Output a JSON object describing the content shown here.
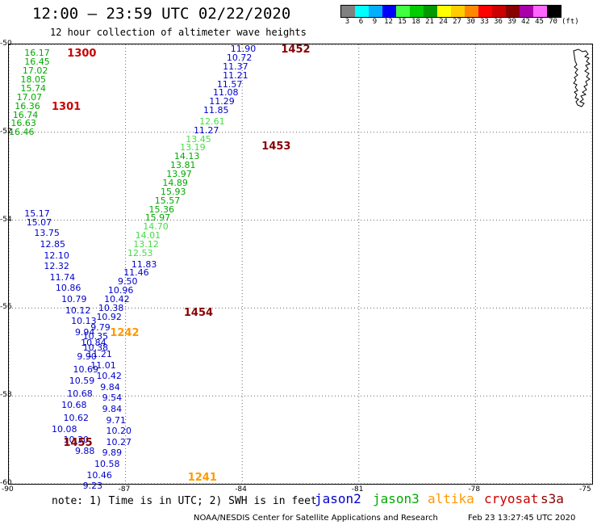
{
  "header": {
    "title": "12:00 – 23:59 UTC 02/22/2020",
    "subtitle": "12 hour collection of altimeter wave heights"
  },
  "colorbar": {
    "unit_label": "(ft)",
    "bins": [
      {
        "label": "3",
        "color": "#808080"
      },
      {
        "label": "6",
        "color": "#00ffff"
      },
      {
        "label": "9",
        "color": "#00b0ff"
      },
      {
        "label": "12",
        "color": "#0000ff"
      },
      {
        "label": "15",
        "color": "#40ff40"
      },
      {
        "label": "18",
        "color": "#00cc00"
      },
      {
        "label": "21",
        "color": "#009900"
      },
      {
        "label": "24",
        "color": "#ffff00"
      },
      {
        "label": "27",
        "color": "#ffcc00"
      },
      {
        "label": "30",
        "color": "#ff8800"
      },
      {
        "label": "33",
        "color": "#ff0000"
      },
      {
        "label": "36",
        "color": "#cc0000"
      },
      {
        "label": "39",
        "color": "#880000"
      },
      {
        "label": "42",
        "color": "#aa00aa"
      },
      {
        "label": "45",
        "color": "#ff66ff"
      },
      {
        "label": "70",
        "color": "#000000"
      }
    ]
  },
  "axes": {
    "lat_labels": [
      "-50",
      "-52",
      "-54",
      "-56",
      "-58",
      "-60"
    ],
    "lon_labels": [
      "-90",
      "-87",
      "-84",
      "-81",
      "-78",
      "-75"
    ]
  },
  "colors": {
    "jason2": "#0000cc",
    "jason3": "#00aa00",
    "jason3_light": "#44dd44",
    "altika": "#ff9900",
    "cryosat": "#cc0000",
    "s3a": "#880000"
  },
  "chart_data": {
    "type": "map",
    "xlim": [
      -90,
      -75
    ],
    "ylim": [
      -60,
      -50
    ],
    "tracks": [
      {
        "color_key": "jason3",
        "points": [
          {
            "lon": -89.6,
            "lat": -50.1,
            "v": "16.17"
          },
          {
            "lon": -89.6,
            "lat": -50.3,
            "v": "16.45"
          },
          {
            "lon": -89.65,
            "lat": -50.5,
            "v": "17.02"
          },
          {
            "lon": -89.7,
            "lat": -50.7,
            "v": "18.05"
          },
          {
            "lon": -89.7,
            "lat": -50.9,
            "v": "15.74"
          },
          {
            "lon": -89.8,
            "lat": -51.1,
            "v": "17.07"
          },
          {
            "lon": -89.85,
            "lat": -51.3,
            "v": "16.36"
          },
          {
            "lon": -89.9,
            "lat": -51.5,
            "v": "16.74"
          },
          {
            "lon": -89.95,
            "lat": -51.7,
            "v": "16.63"
          },
          {
            "lon": -90.0,
            "lat": -51.9,
            "v": "16.46"
          }
        ]
      },
      {
        "color_key": "jason2",
        "points": [
          {
            "lon": -84.3,
            "lat": -50.0,
            "v": "11.90"
          },
          {
            "lon": -84.4,
            "lat": -50.2,
            "v": "10.72"
          },
          {
            "lon": -84.5,
            "lat": -50.4,
            "v": "11.37"
          },
          {
            "lon": -84.5,
            "lat": -50.6,
            "v": "11.21"
          },
          {
            "lon": -84.65,
            "lat": -50.8,
            "v": "11.57"
          },
          {
            "lon": -84.75,
            "lat": -51.0,
            "v": "11.08"
          },
          {
            "lon": -84.85,
            "lat": -51.2,
            "v": "11.29"
          },
          {
            "lon": -85.0,
            "lat": -51.4,
            "v": "11.85"
          }
        ]
      },
      {
        "color_key": "jason3_light",
        "points": [
          {
            "lon": -85.1,
            "lat": -51.65,
            "v": "12.61"
          }
        ]
      },
      {
        "color_key": "jason2",
        "points": [
          {
            "lon": -85.25,
            "lat": -51.85,
            "v": "11.27"
          }
        ]
      },
      {
        "color_key": "jason3_light",
        "points": [
          {
            "lon": -85.45,
            "lat": -52.05,
            "v": "13.45"
          },
          {
            "lon": -85.6,
            "lat": -52.25,
            "v": "13.19"
          }
        ]
      },
      {
        "color_key": "jason3",
        "points": [
          {
            "lon": -85.75,
            "lat": -52.45,
            "v": "14.13"
          },
          {
            "lon": -85.85,
            "lat": -52.65,
            "v": "13.81"
          },
          {
            "lon": -85.95,
            "lat": -52.85,
            "v": "13.97"
          },
          {
            "lon": -86.05,
            "lat": -53.05,
            "v": "14.89"
          },
          {
            "lon": -86.1,
            "lat": -53.25,
            "v": "15.93"
          },
          {
            "lon": -86.25,
            "lat": -53.45,
            "v": "15.57"
          },
          {
            "lon": -86.4,
            "lat": -53.65,
            "v": "15.36"
          },
          {
            "lon": -86.5,
            "lat": -53.85,
            "v": "15.97"
          }
        ]
      },
      {
        "color_key": "jason3_light",
        "points": [
          {
            "lon": -86.55,
            "lat": -54.05,
            "v": "14.70"
          },
          {
            "lon": -86.75,
            "lat": -54.25,
            "v": "14.01"
          },
          {
            "lon": -86.8,
            "lat": -54.45,
            "v": "13.12"
          },
          {
            "lon": -86.95,
            "lat": -54.65,
            "v": "12.53"
          }
        ]
      },
      {
        "color_key": "jason2",
        "points": [
          {
            "lon": -86.85,
            "lat": -54.9,
            "v": "11.83"
          },
          {
            "lon": -87.05,
            "lat": -55.1,
            "v": "11.46"
          },
          {
            "lon": -87.2,
            "lat": -55.3,
            "v": "9.50"
          },
          {
            "lon": -87.45,
            "lat": -55.5,
            "v": "10.96"
          },
          {
            "lon": -87.55,
            "lat": -55.7,
            "v": "10.42"
          },
          {
            "lon": -87.7,
            "lat": -55.9,
            "v": "10.38"
          },
          {
            "lon": -87.75,
            "lat": -56.1,
            "v": "10.92"
          },
          {
            "lon": -87.9,
            "lat": -56.35,
            "v": "9.79"
          },
          {
            "lon": -88.1,
            "lat": -56.55,
            "v": "10.35"
          },
          {
            "lon": -88.1,
            "lat": -56.8,
            "v": "10.38"
          },
          {
            "lon": -88.25,
            "lat": -57.0,
            "v": "9.90"
          },
          {
            "lon": -88.35,
            "lat": -57.3,
            "v": "10.69"
          },
          {
            "lon": -88.45,
            "lat": -57.55,
            "v": "10.59"
          },
          {
            "lon": -88.5,
            "lat": -57.85,
            "v": "10.68"
          },
          {
            "lon": -88.65,
            "lat": -58.1,
            "v": "10.68"
          },
          {
            "lon": -88.6,
            "lat": -58.4,
            "v": "10.62"
          },
          {
            "lon": -88.9,
            "lat": -58.65,
            "v": "10.08"
          },
          {
            "lon": -88.6,
            "lat": -58.9,
            "v": "10.30"
          },
          {
            "lon": -88.3,
            "lat": -59.15,
            "v": "9.88"
          }
        ]
      },
      {
        "color_key": "jason2",
        "points": [
          {
            "lon": -89.6,
            "lat": -53.75,
            "v": "15.17"
          },
          {
            "lon": -89.55,
            "lat": -53.95,
            "v": "15.07"
          },
          {
            "lon": -89.35,
            "lat": -54.2,
            "v": "13.75"
          },
          {
            "lon": -89.2,
            "lat": -54.45,
            "v": "12.85"
          },
          {
            "lon": -89.1,
            "lat": -54.7,
            "v": "12.10"
          },
          {
            "lon": -89.1,
            "lat": -54.95,
            "v": "12.32"
          },
          {
            "lon": -88.95,
            "lat": -55.2,
            "v": "11.74"
          },
          {
            "lon": -88.8,
            "lat": -55.45,
            "v": "10.86"
          },
          {
            "lon": -88.65,
            "lat": -55.7,
            "v": "10.79"
          },
          {
            "lon": -88.55,
            "lat": -55.95,
            "v": "10.12"
          },
          {
            "lon": -88.4,
            "lat": -56.2,
            "v": "10.13"
          },
          {
            "lon": -88.3,
            "lat": -56.45,
            "v": "9.94"
          },
          {
            "lon": -88.15,
            "lat": -56.7,
            "v": "10.84"
          },
          {
            "lon": -88.0,
            "lat": -56.95,
            "v": "11.21"
          },
          {
            "lon": -87.9,
            "lat": -57.2,
            "v": "11.01"
          },
          {
            "lon": -87.75,
            "lat": -57.45,
            "v": "10.42"
          },
          {
            "lon": -87.65,
            "lat": -57.7,
            "v": "9.84"
          },
          {
            "lon": -87.6,
            "lat": -57.95,
            "v": "9.54"
          },
          {
            "lon": -87.6,
            "lat": -58.2,
            "v": "9.84"
          },
          {
            "lon": -87.5,
            "lat": -58.45,
            "v": "9.71"
          },
          {
            "lon": -87.5,
            "lat": -58.7,
            "v": "10.20"
          },
          {
            "lon": -87.5,
            "lat": -58.95,
            "v": "10.27"
          },
          {
            "lon": -87.6,
            "lat": -59.2,
            "v": "9.89"
          },
          {
            "lon": -87.8,
            "lat": -59.45,
            "v": "10.58"
          },
          {
            "lon": -88.0,
            "lat": -59.7,
            "v": "10.46"
          },
          {
            "lon": -88.1,
            "lat": -59.95,
            "v": "9.23"
          }
        ]
      }
    ],
    "time_labels": [
      {
        "text": "1300",
        "lon": -88.5,
        "lat": -50.1,
        "color_key": "cryosat"
      },
      {
        "text": "1301",
        "lon": -88.9,
        "lat": -51.3,
        "color_key": "cryosat"
      },
      {
        "text": "1452",
        "lon": -83.0,
        "lat": -50.0,
        "color_key": "s3a"
      },
      {
        "text": "1453",
        "lon": -83.5,
        "lat": -52.2,
        "color_key": "s3a"
      },
      {
        "text": "1454",
        "lon": -85.5,
        "lat": -56.0,
        "color_key": "s3a"
      },
      {
        "text": "1455",
        "lon": -88.6,
        "lat": -58.95,
        "color_key": "s3a"
      },
      {
        "text": "1242",
        "lon": -87.4,
        "lat": -56.45,
        "color_key": "altika"
      },
      {
        "text": "1241",
        "lon": -85.4,
        "lat": -59.75,
        "color_key": "altika"
      }
    ]
  },
  "footer": {
    "note": "note: 1) Time is in UTC; 2) SWH is in feet",
    "legend": [
      {
        "label": "jason2",
        "color_key": "jason2"
      },
      {
        "label": "jason3",
        "color_key": "jason3"
      },
      {
        "label": "altika",
        "color_key": "altika"
      },
      {
        "label": "cryosat",
        "color_key": "cryosat"
      },
      {
        "label": "s3a",
        "color_key": "s3a"
      }
    ],
    "credit": "NOAA/NESDIS Center for Satellite Applications and Research",
    "timestamp": "Feb 23 13:27:45 UTC 2020"
  }
}
